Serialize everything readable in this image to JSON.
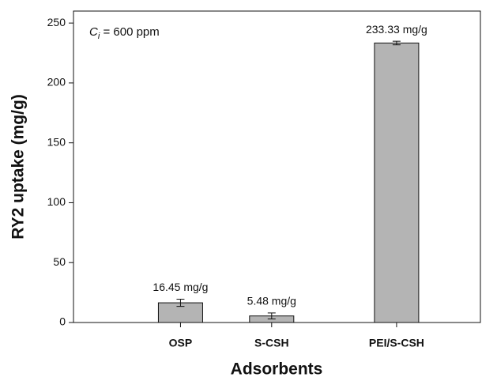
{
  "chart_data": {
    "type": "bar",
    "x_label": "Adsorbents",
    "y_label": "RY2 uptake (mg/g)",
    "annotation": {
      "symbol": "C",
      "subscript": "i",
      "text": " = 600 ppm"
    },
    "categories": [
      "OSP",
      "S-CSH",
      "PEI/S-CSH"
    ],
    "values": [
      16.45,
      5.48,
      233.33
    ],
    "value_labels": [
      "16.45 mg/g",
      "5.48 mg/g",
      "233.33 mg/g"
    ],
    "errors": [
      3,
      2.5,
      1.5
    ],
    "color": "#b4b4b4",
    "ylim": [
      0,
      260
    ],
    "yticks": [
      0,
      50,
      100,
      150,
      200,
      250
    ]
  }
}
